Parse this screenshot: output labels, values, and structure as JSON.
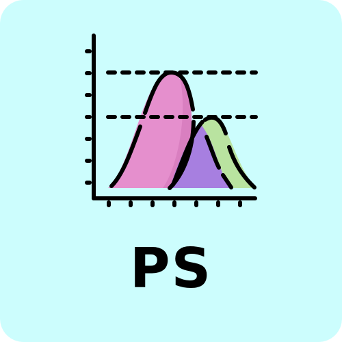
{
  "app_tile": {
    "label": "PS",
    "icon": "distribution-curves-chart-icon"
  },
  "colors": {
    "background": "#ccfdfd",
    "curve_pink": "#e58fcd",
    "curve_pink_shadow": "#d97fc0",
    "curve_green": "#b9e3a0",
    "curve_purple": "#a77fe0",
    "stroke": "#000000"
  }
}
